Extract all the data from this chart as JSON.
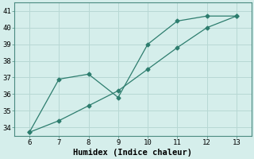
{
  "xlabel": "Humidex (Indice chaleur)",
  "line1_x": [
    6,
    7,
    8,
    9,
    10,
    11,
    12,
    13
  ],
  "line1_y": [
    33.7,
    36.9,
    37.2,
    35.8,
    39.0,
    40.4,
    40.7,
    40.7
  ],
  "line2_x": [
    6,
    7,
    8,
    9,
    10,
    11,
    12,
    13
  ],
  "line2_y": [
    33.7,
    34.4,
    35.3,
    36.2,
    37.5,
    38.8,
    40.0,
    40.7
  ],
  "line_color": "#2d7d6e",
  "background_color": "#d5eeeb",
  "grid_color": "#b8d8d4",
  "xlim": [
    5.5,
    13.5
  ],
  "ylim": [
    33.5,
    41.5
  ],
  "xticks": [
    6,
    7,
    8,
    9,
    10,
    11,
    12,
    13
  ],
  "yticks": [
    34,
    35,
    36,
    37,
    38,
    39,
    40,
    41
  ],
  "tick_fontsize": 6.5,
  "xlabel_fontsize": 7.5,
  "marker": "D",
  "marker_size": 2.5,
  "linewidth": 0.9
}
